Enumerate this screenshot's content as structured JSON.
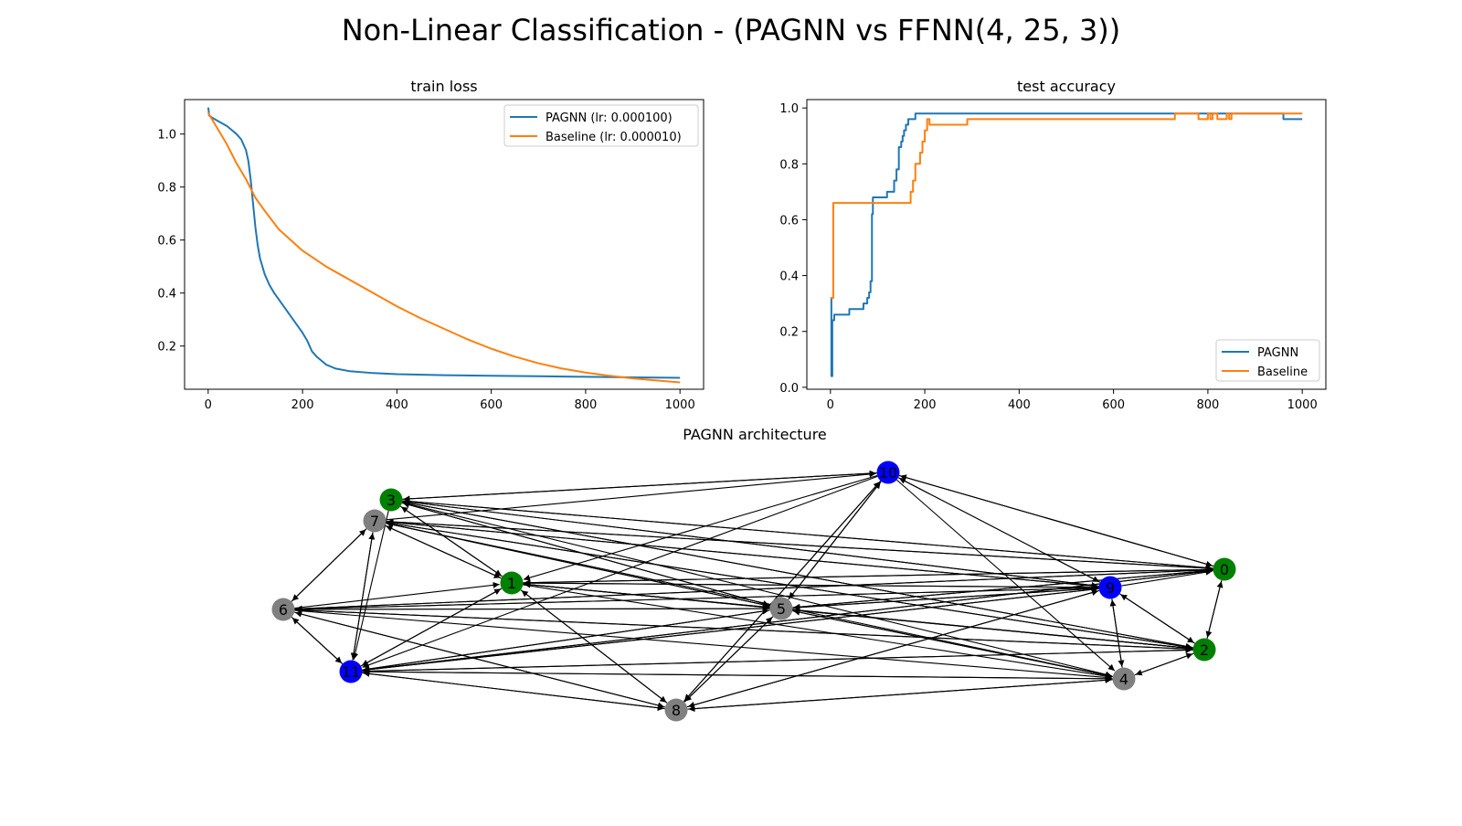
{
  "figure": {
    "title": "Non-Linear Classification - (PAGNN vs FFNN(4, 25, 3))"
  },
  "colors": {
    "pagnn": "#1f77b4",
    "baseline": "#ff7f0e",
    "node_green": "#008000",
    "node_blue": "#0000ff",
    "node_gray": "#808080"
  },
  "chart_data": [
    {
      "type": "line",
      "title": "train loss",
      "xlabel": "",
      "ylabel": "",
      "xlim": [
        -50,
        1050
      ],
      "ylim": [
        0.037,
        1.13
      ],
      "xticks": [
        0,
        200,
        400,
        600,
        800,
        1000
      ],
      "yticks": [
        0.2,
        0.4,
        0.6,
        0.8,
        1.0
      ],
      "ytick_labels": [
        "0.2",
        "0.4",
        "0.6",
        "0.8",
        "1.0"
      ],
      "legend_position": "upper right",
      "series": [
        {
          "name": "PAGNN (lr: 0.000100)",
          "color": "#1f77b4",
          "x": [
            0,
            1,
            2,
            10,
            20,
            40,
            60,
            70,
            80,
            85,
            90,
            95,
            100,
            105,
            110,
            120,
            130,
            140,
            160,
            180,
            200,
            210,
            220,
            230,
            250,
            270,
            300,
            350,
            400,
            500,
            600,
            700,
            800,
            900,
            1000
          ],
          "y": [
            1.1,
            1.09,
            1.07,
            1.06,
            1.05,
            1.03,
            1.0,
            0.98,
            0.94,
            0.9,
            0.83,
            0.74,
            0.65,
            0.58,
            0.53,
            0.47,
            0.43,
            0.4,
            0.35,
            0.3,
            0.25,
            0.22,
            0.18,
            0.16,
            0.13,
            0.115,
            0.105,
            0.098,
            0.094,
            0.09,
            0.088,
            0.086,
            0.084,
            0.082,
            0.08
          ]
        },
        {
          "name": "Baseline (lr: 0.000010)",
          "color": "#ff7f0e",
          "x": [
            0,
            20,
            40,
            60,
            80,
            100,
            120,
            150,
            200,
            250,
            300,
            350,
            400,
            450,
            500,
            550,
            600,
            650,
            700,
            750,
            800,
            850,
            900,
            950,
            1000
          ],
          "y": [
            1.08,
            1.02,
            0.96,
            0.89,
            0.83,
            0.76,
            0.71,
            0.64,
            0.56,
            0.5,
            0.45,
            0.4,
            0.35,
            0.305,
            0.265,
            0.225,
            0.19,
            0.16,
            0.135,
            0.115,
            0.1,
            0.088,
            0.078,
            0.07,
            0.063
          ]
        }
      ]
    },
    {
      "type": "line",
      "title": "test accuracy",
      "xlabel": "",
      "ylabel": "",
      "xlim": [
        -50,
        1050
      ],
      "ylim": [
        -0.007,
        1.03
      ],
      "xticks": [
        0,
        200,
        400,
        600,
        800,
        1000
      ],
      "yticks": [
        0.0,
        0.2,
        0.4,
        0.6,
        0.8,
        1.0
      ],
      "ytick_labels": [
        "0.0",
        "0.2",
        "0.4",
        "0.6",
        "0.8",
        "1.0"
      ],
      "legend_position": "lower right",
      "series": [
        {
          "name": "PAGNN",
          "color": "#1f77b4",
          "step": true,
          "x": [
            0,
            2,
            4,
            8,
            12,
            40,
            70,
            78,
            82,
            85,
            88,
            90,
            95,
            120,
            135,
            140,
            145,
            150,
            153,
            156,
            160,
            165,
            170,
            180,
            190,
            730,
            760,
            950,
            960,
            1000
          ],
          "y": [
            0.32,
            0.04,
            0.24,
            0.26,
            0.26,
            0.28,
            0.3,
            0.32,
            0.34,
            0.38,
            0.62,
            0.68,
            0.68,
            0.7,
            0.74,
            0.78,
            0.86,
            0.88,
            0.9,
            0.92,
            0.94,
            0.96,
            0.96,
            0.98,
            0.98,
            0.98,
            0.98,
            0.98,
            0.96,
            0.96
          ]
        },
        {
          "name": "Baseline",
          "color": "#ff7f0e",
          "step": true,
          "x": [
            0,
            4,
            6,
            165,
            170,
            175,
            180,
            190,
            195,
            200,
            205,
            210,
            220,
            230,
            290,
            730,
            780,
            800,
            805,
            810,
            820,
            840,
            845,
            850,
            1000
          ],
          "y": [
            0.32,
            0.32,
            0.66,
            0.66,
            0.7,
            0.74,
            0.8,
            0.84,
            0.88,
            0.92,
            0.96,
            0.94,
            0.94,
            0.94,
            0.96,
            0.98,
            0.96,
            0.98,
            0.96,
            0.98,
            0.96,
            0.98,
            0.96,
            0.98,
            0.98
          ]
        }
      ]
    },
    {
      "type": "graph",
      "title": "PAGNN architecture",
      "nodes": [
        {
          "id": "0",
          "group": "input",
          "color": "#008000"
        },
        {
          "id": "1",
          "group": "input",
          "color": "#008000"
        },
        {
          "id": "2",
          "group": "input",
          "color": "#008000"
        },
        {
          "id": "3",
          "group": "input",
          "color": "#008000"
        },
        {
          "id": "4",
          "group": "hidden",
          "color": "#808080"
        },
        {
          "id": "5",
          "group": "hidden",
          "color": "#808080"
        },
        {
          "id": "6",
          "group": "hidden",
          "color": "#808080"
        },
        {
          "id": "7",
          "group": "hidden",
          "color": "#808080"
        },
        {
          "id": "8",
          "group": "hidden",
          "color": "#808080"
        },
        {
          "id": "9",
          "group": "output",
          "color": "#0000ff"
        },
        {
          "id": "10",
          "group": "output",
          "color": "#0000ff"
        },
        {
          "id": "11",
          "group": "output",
          "color": "#0000ff"
        }
      ],
      "edges": [
        [
          "3",
          "10"
        ],
        [
          "10",
          "3"
        ],
        [
          "3",
          "0"
        ],
        [
          "0",
          "3"
        ],
        [
          "3",
          "9"
        ],
        [
          "9",
          "3"
        ],
        [
          "3",
          "2"
        ],
        [
          "2",
          "3"
        ],
        [
          "3",
          "4"
        ],
        [
          "3",
          "5"
        ],
        [
          "5",
          "3"
        ],
        [
          "3",
          "1"
        ],
        [
          "1",
          "3"
        ],
        [
          "3",
          "11"
        ],
        [
          "7",
          "6"
        ],
        [
          "6",
          "7"
        ],
        [
          "7",
          "11"
        ],
        [
          "11",
          "7"
        ],
        [
          "7",
          "1"
        ],
        [
          "1",
          "7"
        ],
        [
          "7",
          "5"
        ],
        [
          "5",
          "7"
        ],
        [
          "7",
          "0"
        ],
        [
          "0",
          "7"
        ],
        [
          "7",
          "9"
        ],
        [
          "9",
          "7"
        ],
        [
          "7",
          "2"
        ],
        [
          "2",
          "7"
        ],
        [
          "4",
          "7"
        ],
        [
          "7",
          "10"
        ],
        [
          "6",
          "1"
        ],
        [
          "6",
          "5"
        ],
        [
          "5",
          "6"
        ],
        [
          "6",
          "9"
        ],
        [
          "9",
          "6"
        ],
        [
          "6",
          "0"
        ],
        [
          "0",
          "6"
        ],
        [
          "6",
          "2"
        ],
        [
          "2",
          "6"
        ],
        [
          "6",
          "4"
        ],
        [
          "6",
          "8"
        ],
        [
          "8",
          "6"
        ],
        [
          "6",
          "11"
        ],
        [
          "11",
          "6"
        ],
        [
          "11",
          "1"
        ],
        [
          "1",
          "11"
        ],
        [
          "11",
          "5"
        ],
        [
          "5",
          "11"
        ],
        [
          "11",
          "9"
        ],
        [
          "9",
          "11"
        ],
        [
          "11",
          "0"
        ],
        [
          "0",
          "11"
        ],
        [
          "11",
          "2"
        ],
        [
          "2",
          "11"
        ],
        [
          "11",
          "4"
        ],
        [
          "4",
          "11"
        ],
        [
          "11",
          "8"
        ],
        [
          "8",
          "11"
        ],
        [
          "10",
          "11"
        ],
        [
          "1",
          "5"
        ],
        [
          "5",
          "1"
        ],
        [
          "1",
          "9"
        ],
        [
          "9",
          "1"
        ],
        [
          "1",
          "0"
        ],
        [
          "0",
          "1"
        ],
        [
          "1",
          "2"
        ],
        [
          "2",
          "1"
        ],
        [
          "1",
          "4"
        ],
        [
          "1",
          "8"
        ],
        [
          "8",
          "1"
        ],
        [
          "10",
          "1"
        ],
        [
          "5",
          "9"
        ],
        [
          "9",
          "5"
        ],
        [
          "5",
          "0"
        ],
        [
          "0",
          "5"
        ],
        [
          "5",
          "2"
        ],
        [
          "2",
          "5"
        ],
        [
          "5",
          "4"
        ],
        [
          "4",
          "5"
        ],
        [
          "5",
          "8"
        ],
        [
          "8",
          "5"
        ],
        [
          "5",
          "10"
        ],
        [
          "10",
          "5"
        ],
        [
          "8",
          "9"
        ],
        [
          "9",
          "8"
        ],
        [
          "8",
          "4"
        ],
        [
          "4",
          "8"
        ],
        [
          "8",
          "10"
        ],
        [
          "10",
          "8"
        ],
        [
          "9",
          "2"
        ],
        [
          "2",
          "9"
        ],
        [
          "9",
          "4"
        ],
        [
          "4",
          "9"
        ],
        [
          "9",
          "10"
        ],
        [
          "10",
          "9"
        ],
        [
          "9",
          "0"
        ],
        [
          "0",
          "2"
        ],
        [
          "2",
          "0"
        ],
        [
          "0",
          "10"
        ],
        [
          "10",
          "0"
        ],
        [
          "4",
          "2"
        ],
        [
          "2",
          "4"
        ],
        [
          "10",
          "4"
        ]
      ]
    }
  ]
}
